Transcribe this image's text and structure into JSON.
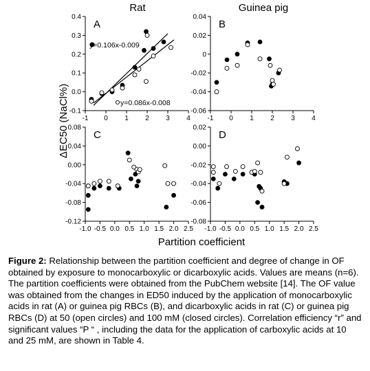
{
  "figure": {
    "col_titles": [
      "Rat",
      "Guinea pig"
    ],
    "ylabel": "ΔEC50 (NaCl%)",
    "xlabel": "Partition coefficient"
  },
  "chart_data": [
    {
      "type": "scatter",
      "panel": "A",
      "xlim": [
        -1,
        4
      ],
      "ylim": [
        -0.1,
        0.4
      ],
      "xticks": [
        "-1",
        "0",
        "1",
        "2",
        "3",
        "4"
      ],
      "yticks": [
        "-0.1",
        "0.0",
        "0.1",
        "0.2",
        "0.3",
        "0.4"
      ],
      "series": [
        {
          "marker": "closed",
          "x": [
            -0.7,
            -0.2,
            0.3,
            0.8,
            1.4,
            1.85,
            1.95,
            2.3,
            2.8
          ],
          "y": [
            -0.04,
            -0.01,
            0.0,
            0.035,
            0.13,
            0.22,
            0.32,
            0.23,
            0.265
          ]
        },
        {
          "marker": "open",
          "x": [
            -0.7,
            -0.2,
            0.3,
            0.8,
            1.4,
            1.6,
            1.95,
            2.0,
            2.3,
            3.15
          ],
          "y": [
            -0.05,
            -0.005,
            0.01,
            0.02,
            0.09,
            0.12,
            0.055,
            0.3,
            0.19,
            0.235
          ]
        }
      ],
      "fits": [
        {
          "label": "y=0.106x-0.009",
          "slope": 0.106,
          "intercept": -0.009,
          "x": [
            -0.6,
            3.0
          ]
        },
        {
          "label": "y=0.086x-0.008",
          "slope": 0.086,
          "intercept": -0.008,
          "x": [
            -0.6,
            3.3
          ]
        }
      ]
    },
    {
      "type": "scatter",
      "panel": "B",
      "xlim": [
        -1,
        4
      ],
      "ylim": [
        -0.06,
        0.04
      ],
      "xticks": [
        "-1",
        "0",
        "1",
        "2",
        "3",
        "4"
      ],
      "yticks": [
        "-0.06",
        "-0.04",
        "-0.02",
        "0",
        "0.02",
        "0.04"
      ],
      "series": [
        {
          "marker": "closed",
          "x": [
            -0.7,
            -0.2,
            0.3,
            0.8,
            1.4,
            1.85,
            1.95,
            2.0,
            2.3
          ],
          "y": [
            -0.03,
            -0.006,
            0.0,
            0.012,
            0.013,
            -0.005,
            -0.034,
            -0.032,
            -0.02
          ]
        },
        {
          "marker": "open",
          "x": [
            -0.7,
            -0.2,
            0.3,
            0.8,
            1.4,
            1.9,
            2.0,
            2.05,
            2.35
          ],
          "y": [
            -0.04,
            -0.015,
            -0.012,
            0.01,
            -0.005,
            -0.012,
            -0.028,
            -0.032,
            -0.017
          ]
        }
      ]
    },
    {
      "type": "scatter",
      "panel": "C",
      "xlim": [
        -1.0,
        2.5
      ],
      "ylim": [
        -0.12,
        0.08
      ],
      "xticks": [
        "-1.0",
        "-0.5",
        "0.0",
        "0.5",
        "1.0",
        "1.5",
        "2.0",
        "2.5"
      ],
      "yticks": [
        "-0.12",
        "-0.08",
        "-0.04",
        "0.00",
        "0.04",
        "0.08"
      ],
      "series": [
        {
          "marker": "closed",
          "x": [
            -0.9,
            -0.9,
            -0.7,
            -0.5,
            -0.2,
            0.15,
            0.45,
            0.55,
            0.7,
            0.75,
            0.8,
            1.75,
            2.0
          ],
          "y": [
            -0.065,
            -0.095,
            -0.05,
            -0.045,
            -0.05,
            -0.05,
            0.025,
            -0.03,
            -0.02,
            -0.045,
            -0.035,
            -0.09,
            -0.065
          ]
        },
        {
          "marker": "open",
          "x": [
            -0.9,
            -0.7,
            -0.5,
            -0.2,
            0.1,
            0.5,
            0.65,
            0.75,
            0.8,
            0.85,
            1.7,
            1.8,
            2.0
          ],
          "y": [
            -0.045,
            -0.04,
            -0.035,
            -0.035,
            -0.045,
            0.01,
            -0.005,
            -0.01,
            -0.015,
            -0.01,
            -0.002,
            -0.04,
            -0.04
          ]
        }
      ]
    },
    {
      "type": "scatter",
      "panel": "D",
      "xlim": [
        -1.0,
        2.5
      ],
      "ylim": [
        -0.08,
        0.02
      ],
      "xticks": [
        "-1.0",
        "-0.5",
        "0.0",
        "0.5",
        "1.0",
        "1.5",
        "2.0",
        "2.5"
      ],
      "yticks": [
        "-0.08",
        "-0.06",
        "-0.04",
        "-0.02",
        "0.00",
        "0.02"
      ],
      "series": [
        {
          "marker": "closed",
          "x": [
            -0.9,
            -0.75,
            -0.5,
            -0.2,
            0.1,
            0.5,
            0.6,
            0.65,
            0.7,
            0.75,
            1.5,
            1.6,
            2.0
          ],
          "y": [
            -0.035,
            -0.045,
            -0.03,
            -0.035,
            -0.03,
            -0.03,
            -0.06,
            -0.043,
            -0.045,
            -0.065,
            -0.038,
            -0.04,
            -0.018
          ]
        },
        {
          "marker": "open",
          "x": [
            -0.9,
            -0.9,
            -0.7,
            -0.45,
            -0.15,
            0.1,
            0.4,
            0.5,
            0.6,
            0.7,
            0.75,
            1.5,
            1.6,
            1.95
          ],
          "y": [
            -0.022,
            -0.028,
            -0.04,
            -0.022,
            -0.027,
            -0.022,
            -0.028,
            -0.027,
            -0.018,
            -0.028,
            -0.048,
            -0.04,
            -0.012,
            -0.003
          ]
        }
      ]
    }
  ],
  "caption": {
    "lead": "Figure 2:",
    "text": " Relationship between the partition coefficient and degree of change in OF obtained by exposure to monocarboxylic or dicarboxylic acids. Values are means (n=6). The partition coefficients were obtained from the PubChem website [14]. The OF value was obtained from the changes in ED50 induced by the application of monocarboxylic acids in rat (A) or guinea pig RBCs (B), and dicarboxylic acids in rat (C) or guinea pig RBCs (D) at 50 (open circles) and 100 mM (closed circles). Correlation efficiency “r” and significant values “P “ , including the data for the application of carboxylic acids at 10 and 25 mM, are shown in Table 4."
  }
}
